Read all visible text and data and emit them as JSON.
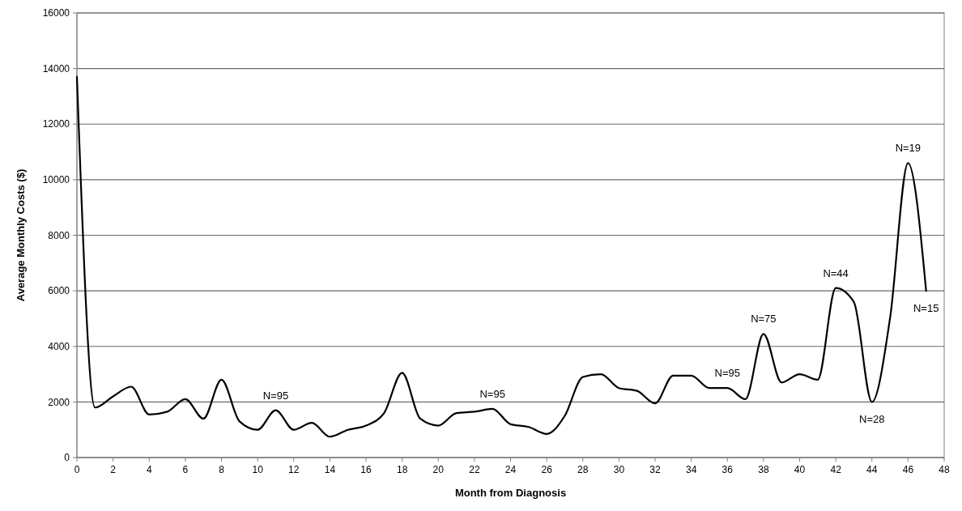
{
  "chart_data": {
    "type": "line",
    "xlabel": "Month from Diagnosis",
    "ylabel": "Average Monthly Costs ($)",
    "x": [
      0,
      1,
      2,
      3,
      4,
      5,
      6,
      7,
      8,
      9,
      10,
      11,
      12,
      13,
      14,
      15,
      16,
      17,
      18,
      19,
      20,
      21,
      22,
      23,
      24,
      25,
      26,
      27,
      28,
      29,
      30,
      31,
      32,
      33,
      34,
      35,
      36,
      37,
      38,
      39,
      40,
      41,
      42,
      43,
      44,
      45,
      46,
      47
    ],
    "series": [
      {
        "color": "#000000",
        "values": [
          13700,
          1800,
          2200,
          2550,
          1550,
          1650,
          2100,
          1400,
          2800,
          1300,
          1000,
          1700,
          1000,
          1250,
          750,
          1000,
          1150,
          1600,
          3050,
          1400,
          1150,
          1600,
          1650,
          1750,
          1200,
          1100,
          850,
          1500,
          2900,
          3000,
          2500,
          2400,
          1950,
          2950,
          2950,
          2500,
          2500,
          2100,
          4450,
          2700,
          3000,
          2800,
          6100,
          5600,
          2000,
          5000,
          10600,
          6000
        ]
      }
    ],
    "xlim": [
      0,
      48
    ],
    "xticks": [
      0,
      2,
      4,
      6,
      8,
      10,
      12,
      14,
      16,
      18,
      20,
      22,
      24,
      26,
      28,
      30,
      32,
      34,
      36,
      38,
      40,
      42,
      44,
      46,
      48
    ],
    "ylim": [
      0,
      16000
    ],
    "yticks": [
      0,
      2000,
      4000,
      6000,
      8000,
      10000,
      12000,
      14000,
      16000
    ],
    "grid": "y",
    "marker": "none",
    "line_style": "solid",
    "annotations": [
      {
        "text": "N=95",
        "x": 11,
        "y": 1700
      },
      {
        "text": "N=95",
        "x": 23,
        "y": 1750
      },
      {
        "text": "N=95",
        "x": 36,
        "y": 2500
      },
      {
        "text": "N=75",
        "x": 38,
        "y": 4450
      },
      {
        "text": "N=44",
        "x": 42,
        "y": 6100
      },
      {
        "text": "N=28",
        "x": 44,
        "y": 2000
      },
      {
        "text": "N=19",
        "x": 46,
        "y": 10600
      },
      {
        "text": "N=15",
        "x": 47,
        "y": 6000
      }
    ]
  }
}
